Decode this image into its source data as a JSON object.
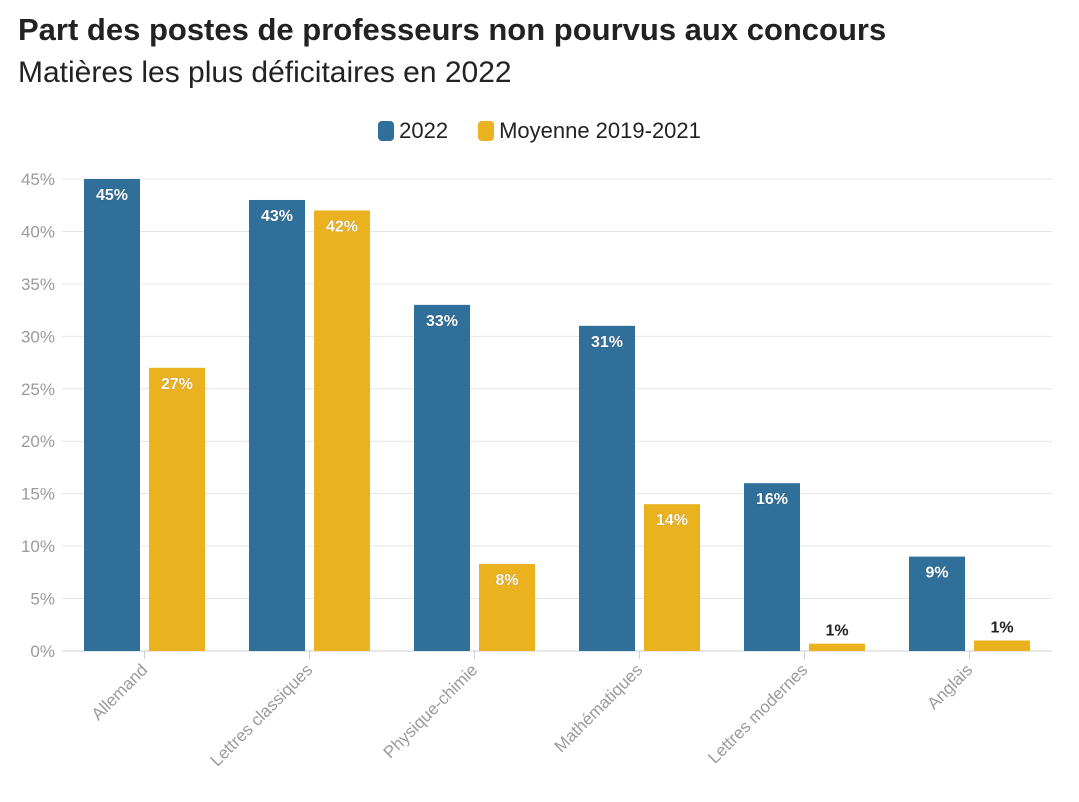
{
  "title": "Part des postes de professeurs non pourvus aux concours",
  "subtitle": "Matières les plus déficitaires en 2022",
  "colors": {
    "series_2022": "#2f6f9a",
    "series_avg": "#ebb21f",
    "grid": "#e6e6e6",
    "axis": "#cfcfcf"
  },
  "chart_data": {
    "type": "bar",
    "title": "Part des postes de professeurs non pourvus aux concours",
    "subtitle": "Matières les plus déficitaires en 2022",
    "xlabel": "",
    "ylabel": "",
    "ylim": [
      0,
      45
    ],
    "yticks": [
      0,
      5,
      10,
      15,
      20,
      25,
      30,
      35,
      40,
      45
    ],
    "ytick_labels": [
      "0%",
      "5%",
      "10%",
      "15%",
      "20%",
      "25%",
      "30%",
      "35%",
      "40%",
      "45%"
    ],
    "grid": true,
    "legend_position": "top-center",
    "categories": [
      "Allemand",
      "Lettres classiques",
      "Physique-chimie",
      "Mathématiques",
      "Lettres modernes",
      "Anglais"
    ],
    "series": [
      {
        "name": "2022",
        "values": [
          45,
          43,
          33,
          31,
          16,
          9
        ],
        "labels": [
          "45%",
          "43%",
          "33%",
          "31%",
          "16%",
          "9%"
        ]
      },
      {
        "name": "Moyenne 2019-2021",
        "values": [
          27,
          42,
          8.3,
          14,
          0.7,
          1
        ],
        "labels": [
          "27%",
          "42%",
          "8%",
          "14%",
          "1%",
          "1%"
        ]
      }
    ]
  }
}
